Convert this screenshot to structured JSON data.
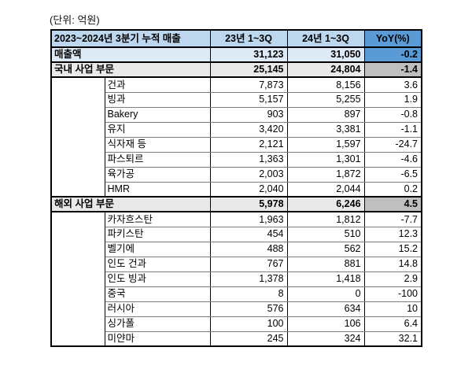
{
  "chart_data": {
    "type": "table",
    "unit_label": "(단위: 억원)",
    "title": "2023~2024년 3분기 누적 매출",
    "columns": [
      "2023~2024년 3분기 누적 매출",
      "23년 1~3Q",
      "24년 1~3Q",
      "YoY(%)"
    ],
    "rows": [
      {
        "type": "total",
        "label": "매출액",
        "v_23": "31,123",
        "v_24": "31,050",
        "yoy": "-0.2"
      },
      {
        "type": "section",
        "label": "국내 사업 부문",
        "v_23": "25,145",
        "v_24": "24,804",
        "yoy": "-1.4"
      },
      {
        "type": "sub",
        "label": "건과",
        "v_23": "7,873",
        "v_24": "8,156",
        "yoy": "3.6"
      },
      {
        "type": "sub",
        "label": "빙과",
        "v_23": "5,157",
        "v_24": "5,255",
        "yoy": "1.9"
      },
      {
        "type": "sub",
        "label": "Bakery",
        "v_23": "903",
        "v_24": "897",
        "yoy": "-0.8"
      },
      {
        "type": "sub",
        "label": "유지",
        "v_23": "3,420",
        "v_24": "3,381",
        "yoy": "-1.1"
      },
      {
        "type": "sub",
        "label": "식자재 등",
        "v_23": "2,121",
        "v_24": "1,597",
        "yoy": "-24.7"
      },
      {
        "type": "sub",
        "label": "파스퇴르",
        "v_23": "1,363",
        "v_24": "1,301",
        "yoy": "-4.6"
      },
      {
        "type": "sub",
        "label": "육가공",
        "v_23": "2,003",
        "v_24": "1,872",
        "yoy": "-6.5"
      },
      {
        "type": "sub",
        "label": "HMR",
        "v_23": "2,040",
        "v_24": "2,044",
        "yoy": "0.2"
      },
      {
        "type": "section",
        "label": "해외 사업 부문",
        "v_23": "5,978",
        "v_24": "6,246",
        "yoy": "4.5"
      },
      {
        "type": "sub",
        "label": "카자흐스탄",
        "v_23": "1,963",
        "v_24": "1,812",
        "yoy": "-7.7"
      },
      {
        "type": "sub",
        "label": "파키스탄",
        "v_23": "454",
        "v_24": "510",
        "yoy": "12.3"
      },
      {
        "type": "sub",
        "label": "벨기에",
        "v_23": "488",
        "v_24": "562",
        "yoy": "15.2"
      },
      {
        "type": "sub",
        "label": "인도 건과",
        "v_23": "767",
        "v_24": "881",
        "yoy": "14.8"
      },
      {
        "type": "sub",
        "label": "인도 빙과",
        "v_23": "1,378",
        "v_24": "1,418",
        "yoy": "2.9"
      },
      {
        "type": "sub",
        "label": "중국",
        "v_23": "8",
        "v_24": "0",
        "yoy": "-100"
      },
      {
        "type": "sub",
        "label": "러시아",
        "v_23": "576",
        "v_24": "634",
        "yoy": "10"
      },
      {
        "type": "sub",
        "label": "싱가폴",
        "v_23": "100",
        "v_24": "106",
        "yoy": "6.4"
      },
      {
        "type": "sub",
        "label": "미얀마",
        "v_23": "245",
        "v_24": "324",
        "yoy": "32.1"
      }
    ],
    "colors": {
      "header_blue": "#BDD7EE",
      "accent_blue": "#5B9BD5",
      "total_row_blue": "#DEEBF7",
      "section_row_gray": "#E9E9E9",
      "accent_gray": "#BFBFBF",
      "grid_line": "#7F7F7F",
      "border": "#000000"
    }
  }
}
